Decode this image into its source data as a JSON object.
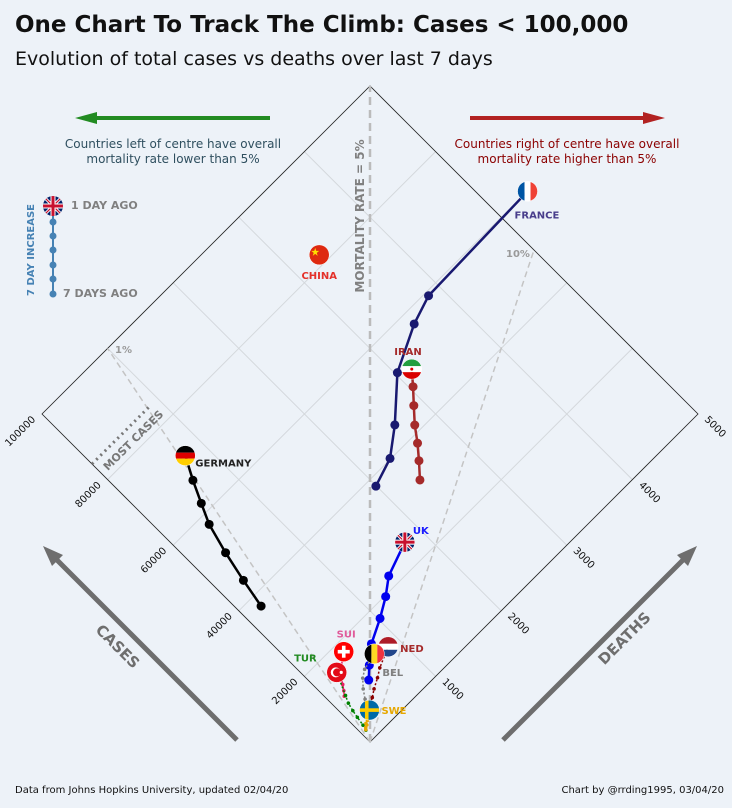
{
  "title": "One Chart To Track The Climb: Cases < 100,000",
  "subtitle": "Evolution of total cases vs deaths over last 7 days",
  "footer_left": "Data from Johns Hopkins University, updated 02/04/20",
  "footer_right": "Chart by @rrding1995, 03/04/20",
  "note_left": "Countries left of centre have overall mortality rate lower than 5%",
  "note_right": "Countries right of centre have overall mortality rate higher than 5%",
  "center_line_label": "MORTALITY RATE = 5%",
  "rate_10_label": "10%",
  "rate_1_label": "1%",
  "most_cases_label": "MOST CASES",
  "cases_axis_label": "CASES",
  "deaths_axis_label": "DEATHS",
  "legend": {
    "title": "7 DAY INCREASE",
    "top_label": "1 DAY AGO",
    "bottom_label": "7 DAYS AGO"
  },
  "colors": {
    "background": "#edf2f8",
    "left_arrow": "#228b22",
    "right_arrow": "#b22222",
    "axis_arrows": "#6e6e6e"
  },
  "chart_data": {
    "type": "scatter",
    "xlabel": "CASES",
    "ylabel": "DEATHS",
    "xlim": [
      0,
      100000
    ],
    "ylim": [
      0,
      5000
    ],
    "case_ticks": [
      "20000",
      "40000",
      "60000",
      "80000",
      "100000"
    ],
    "death_ticks": [
      "1000",
      "2000",
      "3000",
      "4000",
      "5000"
    ],
    "reference_lines": [
      {
        "label": "1%",
        "rate": 0.01
      },
      {
        "label": "MORTALITY RATE = 5%",
        "rate": 0.05
      },
      {
        "label": "10%",
        "rate": 0.1
      }
    ],
    "series": [
      {
        "name": "FRANCE",
        "color": "#191970",
        "label_color": "#483d8b",
        "flag": "france-flag",
        "cases": [
          38105,
          40174,
          44550,
          52128,
          56989,
          59105,
          59929
        ],
        "deaths": [
          1995,
          2314,
          2606,
          3024,
          3523,
          3848,
          5398
        ]
      },
      {
        "name": "IRAN",
        "color": "#a52a2a",
        "label_color": "#a52a2a",
        "flag": "iran-flag",
        "cases": [
          32332,
          35408,
          38309,
          41495,
          44605,
          47593,
          50468
        ],
        "deaths": [
          2378,
          2517,
          2640,
          2757,
          2898,
          3036,
          3160
        ]
      },
      {
        "name": "CHINA",
        "color": "#d52b1e",
        "label_color": "#e4322b",
        "flag": "china-flag",
        "cases": [
          81999
        ],
        "deaths": [
          3326
        ]
      },
      {
        "name": "GERMANY",
        "color": "#000000",
        "label_color": "#222222",
        "flag": "germany-flag",
        "cases": [
          37323,
          43938,
          50871,
          57695,
          62095,
          66885,
          71808
        ],
        "deaths": [
          206,
          267,
          342,
          433,
          533,
          645,
          775
        ]
      },
      {
        "name": "UK",
        "color": "#0000ee",
        "label_color": "#1a1aff",
        "flag": "uk-flag",
        "cases": [
          9640,
          11812,
          14745,
          17312,
          19780,
          22453,
          25150
        ],
        "deaths": [
          463,
          580,
          759,
          1019,
          1228,
          1408,
          1789
        ]
      },
      {
        "name": "NED",
        "color": "#8b0000",
        "label_color": "#a52a2a",
        "flag": "netherlands-flag",
        "cases": [
          4764,
          5587,
          6438,
          7468,
          8647,
          9819,
          11750
        ],
        "deaths": [
          214,
          277,
          357,
          435,
          547,
          640,
          864
        ]
      },
      {
        "name": "BEL",
        "color": "#808080",
        "label_color": "#808080",
        "flag": "belgium-flag",
        "cases": [
          4937,
          6235,
          7284,
          9134,
          10836,
          11899,
          12775
        ],
        "deaths": [
          178,
          220,
          289,
          353,
          431,
          513,
          705
        ]
      },
      {
        "name": "SUI",
        "color": "#e91e63",
        "label_color": "#e05a9a",
        "flag": "switzerland-flag",
        "cases": [
          10897,
          11811,
          12928,
          14076,
          14829,
          15922,
          17768
        ],
        "deaths": [
          153,
          191,
          231,
          264,
          300,
          359,
          488
        ]
      },
      {
        "name": "TUR",
        "color": "#008000",
        "label_color": "#228b22",
        "flag": "turkey-flag",
        "cases": [
          2433,
          3629,
          5698,
          7402,
          9217,
          10827,
          15679
        ],
        "deaths": [
          59,
          75,
          92,
          108,
          131,
          168,
          277
        ]
      },
      {
        "name": "SWE",
        "color": "#e6a700",
        "label_color": "#e6a700",
        "flag": "sweden-flag",
        "cases": [
          2526,
          2840,
          3069,
          3447,
          3700,
          4028,
          4947
        ],
        "deaths": [
          62,
          77,
          105,
          110,
          146,
          180,
          239
        ]
      }
    ]
  }
}
